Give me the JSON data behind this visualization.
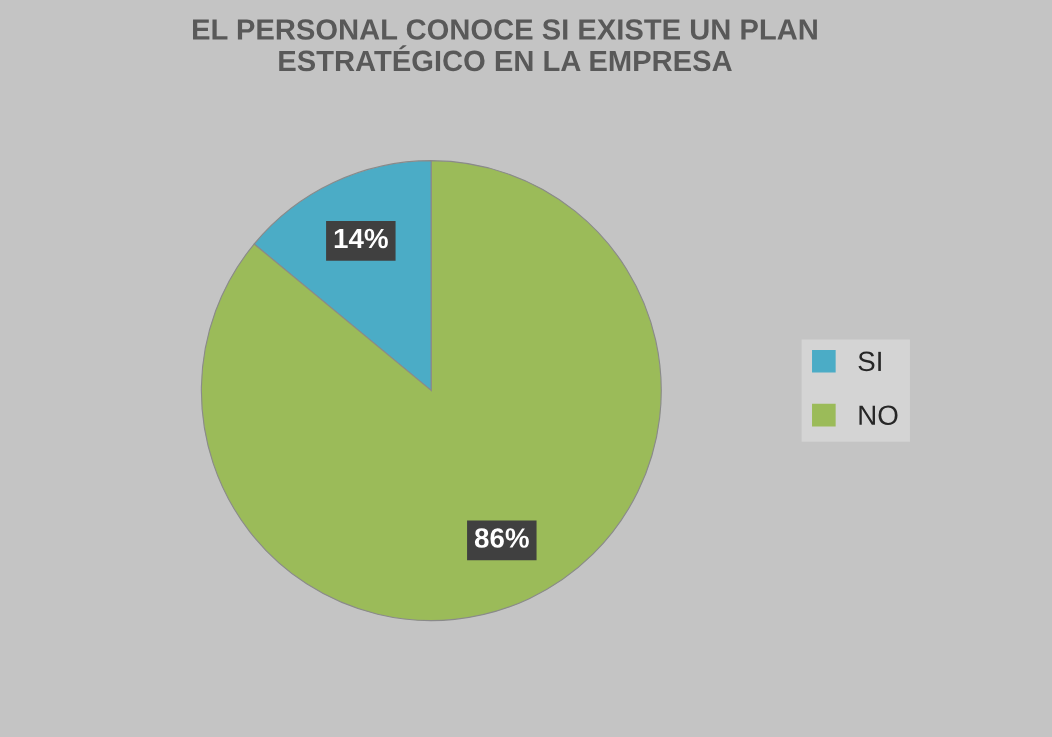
{
  "chart_data": {
    "type": "pie",
    "title": "EL PERSONAL CONOCE SI EXISTE UN PLAN\nESTRATÉGICO EN LA EMPRESA",
    "categories": [
      "SI",
      "NO"
    ],
    "values": [
      14,
      86
    ],
    "colors": [
      "#4bacc6",
      "#9bbb59"
    ],
    "value_labels": [
      "14%",
      "86%"
    ],
    "legend": "right"
  }
}
